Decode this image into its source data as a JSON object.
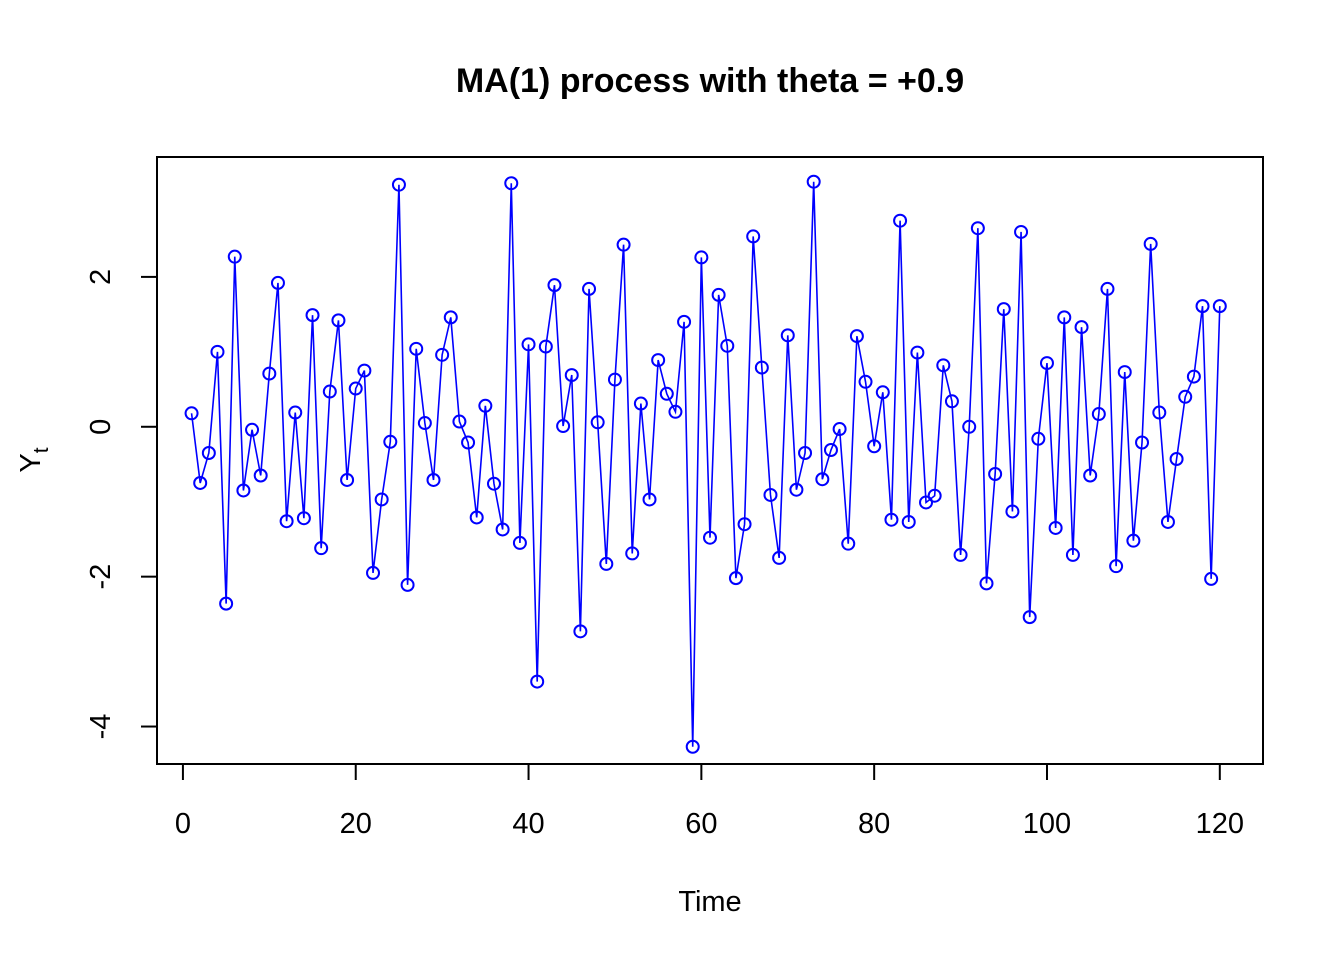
{
  "chart_data": {
    "type": "line",
    "title": "MA(1) process with theta = +0.9",
    "xlabel": "Time",
    "ylabel": "Y",
    "ylabel_subscript": "t",
    "xlim": [
      -3,
      125
    ],
    "ylim": [
      -4.5,
      3.6
    ],
    "x_ticks": [
      0,
      20,
      40,
      60,
      80,
      100,
      120
    ],
    "y_ticks": [
      -4,
      -2,
      0,
      2
    ],
    "x_tick_labels": [
      "0",
      "20",
      "40",
      "60",
      "80",
      "100",
      "120"
    ],
    "y_tick_labels": [
      "-4",
      "-2",
      "0",
      "2"
    ],
    "grid": false,
    "marker": "open-circle",
    "line_color": "#0000ff",
    "series": [
      {
        "x": [
          1,
          2,
          3,
          4,
          5,
          6,
          7,
          8,
          9,
          10,
          11,
          12,
          13,
          14,
          15,
          16,
          17,
          18,
          19,
          20,
          21,
          22,
          23,
          24,
          25,
          26,
          27,
          28,
          29,
          30,
          31,
          32,
          33,
          34,
          35,
          36,
          37,
          38,
          39,
          40,
          41,
          42,
          43,
          44,
          45,
          46,
          47,
          48,
          49,
          50,
          51,
          52,
          53,
          54,
          55,
          56,
          57,
          58,
          59,
          60,
          61,
          62,
          63,
          64,
          65,
          66,
          67,
          68,
          69,
          70,
          71,
          72,
          73,
          74,
          75,
          76,
          77,
          78,
          79,
          80,
          81,
          82,
          83,
          84,
          85,
          86,
          87,
          88,
          89,
          90,
          91,
          92,
          93,
          94,
          95,
          96,
          97,
          98,
          99,
          100,
          101,
          102,
          103,
          104,
          105,
          106,
          107,
          108,
          109,
          110,
          111,
          112,
          113,
          114,
          115,
          116,
          117,
          118,
          119,
          120
        ],
        "values": [
          0.18,
          -0.75,
          -0.35,
          1.0,
          -2.36,
          2.27,
          -0.85,
          -0.04,
          -0.65,
          0.71,
          1.92,
          -1.26,
          0.19,
          -1.22,
          1.49,
          -1.62,
          0.47,
          1.42,
          -0.71,
          0.51,
          0.75,
          -1.95,
          -0.97,
          -0.2,
          3.23,
          -2.11,
          1.04,
          0.05,
          -0.71,
          0.96,
          1.46,
          0.07,
          -0.21,
          -1.21,
          0.28,
          -0.76,
          -1.37,
          3.25,
          -1.55,
          1.1,
          -3.4,
          1.07,
          1.89,
          0.01,
          0.69,
          -2.73,
          1.84,
          0.06,
          -1.83,
          0.63,
          2.43,
          -1.69,
          0.31,
          -0.97,
          0.89,
          0.44,
          0.2,
          1.4,
          -4.27,
          2.26,
          -1.48,
          1.76,
          1.08,
          -2.02,
          -1.3,
          2.54,
          0.79,
          -0.91,
          -1.75,
          1.22,
          -0.84,
          -0.35,
          3.27,
          -0.7,
          -0.31,
          -0.03,
          -1.56,
          1.21,
          0.6,
          -0.26,
          0.46,
          -1.24,
          2.75,
          -1.27,
          0.99,
          -1.01,
          -0.92,
          0.82,
          0.34,
          -1.71,
          0.0,
          2.65,
          -2.09,
          -0.63,
          1.57,
          -1.13,
          2.6,
          -2.54,
          -0.16,
          0.85,
          -1.35,
          1.46,
          -1.71,
          1.33,
          -0.65,
          0.17,
          1.84,
          -1.86,
          0.73,
          -1.52,
          -0.21,
          2.44,
          0.19,
          -1.27,
          -0.43,
          0.4,
          0.67,
          1.61,
          -2.03,
          1.61
        ]
      }
    ]
  }
}
